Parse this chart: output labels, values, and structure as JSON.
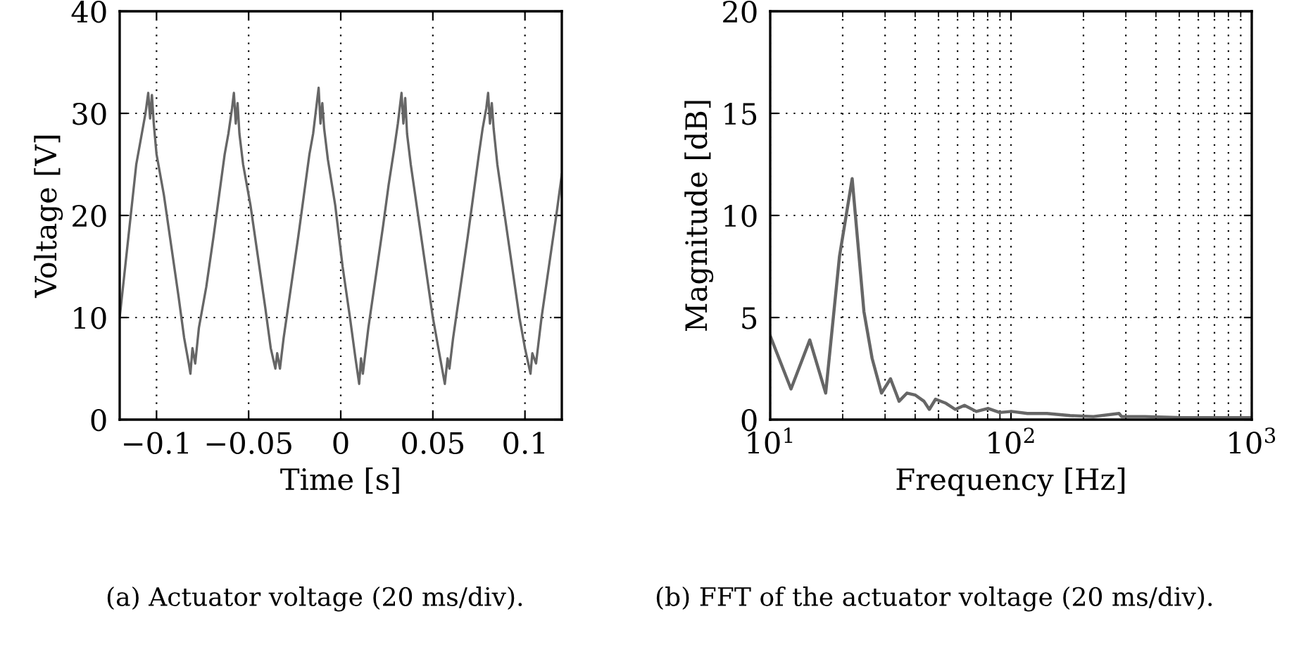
{
  "chart_data": [
    {
      "type": "line",
      "xlabel": "Time [s]",
      "ylabel": "Voltage [V]",
      "xlim": [
        -0.12,
        0.12
      ],
      "ylim": [
        0,
        40
      ],
      "xticks": [
        {
          "value": -0.1,
          "label": "−0.1"
        },
        {
          "value": -0.05,
          "label": "−0.05"
        },
        0,
        0.05,
        0.1
      ],
      "yticks": [
        0,
        10,
        20,
        30,
        40
      ],
      "grid": true,
      "line_style": "solid",
      "marker": "none",
      "annotations": [
        "(a) Actuator voltage (20 ms/div)."
      ],
      "series": [
        {
          "color": "#666666",
          "x": [
            -0.12,
            -0.117,
            -0.114,
            -0.111,
            -0.108,
            -0.106,
            -0.1045,
            -0.1035,
            -0.1025,
            -0.1015,
            -0.1,
            -0.096,
            -0.092,
            -0.088,
            -0.085,
            -0.0825,
            -0.0816,
            -0.0805,
            -0.079,
            -0.077,
            -0.073,
            -0.069,
            -0.066,
            -0.063,
            -0.061,
            -0.059,
            -0.058,
            -0.057,
            -0.056,
            -0.055,
            -0.053,
            -0.049,
            -0.045,
            -0.041,
            -0.038,
            -0.0355,
            -0.0345,
            -0.033,
            -0.031,
            -0.027,
            -0.023,
            -0.02,
            -0.017,
            -0.015,
            -0.013,
            -0.012,
            -0.011,
            -0.01,
            -0.009,
            -0.007,
            -0.003,
            0.001,
            0.005,
            0.008,
            0.01,
            0.011,
            0.012,
            0.015,
            0.019,
            0.023,
            0.026,
            0.029,
            0.031,
            0.032,
            0.033,
            0.034,
            0.035,
            0.036,
            0.038,
            0.042,
            0.046,
            0.05,
            0.053,
            0.0565,
            0.058,
            0.059,
            0.061,
            0.065,
            0.069,
            0.072,
            0.075,
            0.077,
            0.079,
            0.08,
            0.081,
            0.082,
            0.083,
            0.085,
            0.089,
            0.093,
            0.097,
            0.1,
            0.103,
            0.104,
            0.106,
            0.109,
            0.113,
            0.117,
            0.12
          ],
          "values": [
            10,
            15,
            20,
            25,
            28,
            30,
            32,
            29.5,
            31.8,
            29,
            26,
            22,
            17,
            12,
            8,
            5.5,
            4.5,
            7,
            5.5,
            9,
            13,
            18,
            22,
            26,
            28,
            30.5,
            32,
            29,
            31,
            28,
            25,
            21,
            16,
            11,
            7,
            5,
            6.5,
            5,
            8,
            13,
            18,
            22,
            26,
            28,
            31,
            32.5,
            29,
            31,
            28.5,
            25.5,
            21,
            15,
            10,
            6,
            3.5,
            6,
            4.5,
            9,
            14,
            19,
            23,
            26.5,
            29,
            30.5,
            32,
            29,
            31.5,
            28,
            25,
            20,
            15,
            10,
            7,
            3.5,
            6,
            5,
            8,
            13,
            18,
            22,
            26,
            28.5,
            30.5,
            32,
            29,
            31,
            28.5,
            25,
            20,
            15,
            10,
            7,
            4.5,
            6.5,
            5.5,
            10,
            15,
            20,
            24
          ]
        }
      ]
    },
    {
      "type": "line",
      "xlabel": "Frequency [Hz]",
      "ylabel": "Magnitude [dB]",
      "log": "x",
      "xlim": [
        10,
        1000
      ],
      "ylim": [
        0,
        20
      ],
      "xticks": [
        {
          "value": 10,
          "label": "10$^{1}$"
        },
        {
          "value": 100,
          "label": "10$^{2}$"
        },
        {
          "value": 1000,
          "label": "10$^{3}$"
        }
      ],
      "yticks": [
        0,
        5,
        10,
        15,
        20
      ],
      "grid": true,
      "line_style": "solid",
      "marker": "none",
      "annotations": [
        "(b) FFT of the actuator voltage (20 ms/div)."
      ],
      "series": [
        {
          "color": "#666666",
          "x": [
            10,
            12.2,
            14.6,
            17.0,
            19.4,
            21.9,
            24.5,
            26.5,
            29.0,
            31.6,
            34.3,
            37.0,
            40.1,
            43.5,
            45.8,
            48.6,
            53.7,
            58.7,
            64.1,
            71.8,
            80.3,
            89.8,
            100.5,
            117,
            141,
            176,
            220,
            281,
            288,
            360,
            515,
            705,
            1000
          ],
          "values": [
            4.1,
            1.5,
            3.9,
            1.3,
            8.0,
            11.8,
            5.3,
            3,
            1.3,
            2.0,
            0.9,
            1.3,
            1.2,
            0.9,
            0.5,
            1.0,
            0.8,
            0.5,
            0.7,
            0.4,
            0.55,
            0.35,
            0.4,
            0.3,
            0.3,
            0.2,
            0.15,
            0.3,
            0.15,
            0.15,
            0.1,
            0.1,
            0.1
          ]
        }
      ]
    }
  ]
}
